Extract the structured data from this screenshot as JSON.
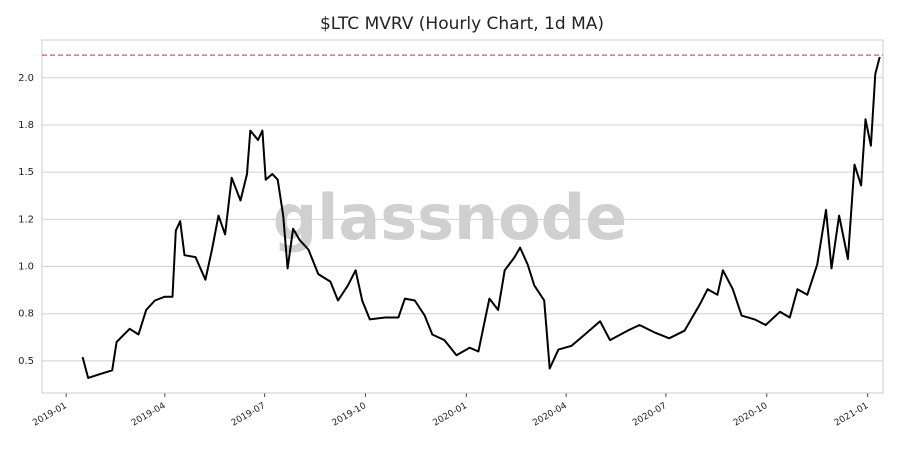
{
  "chart_data": {
    "type": "line",
    "title": "$LTC MVRV (Hourly Chart, 1d MA)",
    "watermark": "glassnode",
    "x": [
      "2019-01-16",
      "2019-01-21",
      "2019-02-01",
      "2019-02-12",
      "2019-02-16",
      "2019-02-28",
      "2019-03-08",
      "2019-03-15",
      "2019-03-23",
      "2019-04-01",
      "2019-04-08",
      "2019-04-11",
      "2019-04-15",
      "2019-04-19",
      "2019-04-29",
      "2019-05-08",
      "2019-05-14",
      "2019-05-20",
      "2019-05-26",
      "2019-06-01",
      "2019-06-09",
      "2019-06-15",
      "2019-06-18",
      "2019-06-25",
      "2019-06-29",
      "2019-07-02",
      "2019-07-08",
      "2019-07-13",
      "2019-07-18",
      "2019-07-22",
      "2019-07-27",
      "2019-08-02",
      "2019-08-10",
      "2019-08-19",
      "2019-08-30",
      "2019-09-06",
      "2019-09-15",
      "2019-09-22",
      "2019-09-28",
      "2019-10-05",
      "2019-10-19",
      "2019-10-31",
      "2019-11-06",
      "2019-11-15",
      "2019-11-24",
      "2019-12-01",
      "2019-12-12",
      "2019-12-23",
      "2020-01-04",
      "2020-01-12",
      "2020-01-17",
      "2020-01-22",
      "2020-01-30",
      "2020-02-05",
      "2020-02-14",
      "2020-02-19",
      "2020-02-26",
      "2020-03-03",
      "2020-03-12",
      "2020-03-17",
      "2020-03-25",
      "2020-04-06",
      "2020-04-18",
      "2020-05-02",
      "2020-05-11",
      "2020-05-27",
      "2020-06-07",
      "2020-06-21",
      "2020-07-04",
      "2020-07-18",
      "2020-08-01",
      "2020-08-08",
      "2020-08-17",
      "2020-08-22",
      "2020-08-31",
      "2020-09-08",
      "2020-09-20",
      "2020-09-30",
      "2020-10-13",
      "2020-10-22",
      "2020-10-29",
      "2020-11-07",
      "2020-11-16",
      "2020-11-24",
      "2020-11-29",
      "2020-12-06",
      "2020-12-14",
      "2020-12-20",
      "2020-12-26",
      "2020-12-30",
      "2021-01-04",
      "2021-01-08",
      "2021-01-12"
    ],
    "series": [
      {
        "name": "MVRV",
        "color": "#000000",
        "values": [
          0.52,
          0.41,
          0.43,
          0.45,
          0.6,
          0.67,
          0.64,
          0.77,
          0.82,
          0.84,
          0.84,
          1.19,
          1.24,
          1.06,
          1.05,
          0.93,
          1.09,
          1.27,
          1.17,
          1.47,
          1.35,
          1.49,
          1.72,
          1.67,
          1.72,
          1.46,
          1.49,
          1.46,
          1.27,
          0.99,
          1.2,
          1.14,
          1.09,
          0.96,
          0.92,
          0.82,
          0.9,
          0.98,
          0.82,
          0.72,
          0.73,
          0.73,
          0.83,
          0.82,
          0.74,
          0.64,
          0.61,
          0.53,
          0.57,
          0.55,
          0.69,
          0.83,
          0.77,
          0.98,
          1.05,
          1.1,
          1.01,
          0.9,
          0.82,
          0.46,
          0.56,
          0.58,
          0.64,
          0.71,
          0.61,
          0.66,
          0.69,
          0.65,
          0.62,
          0.66,
          0.8,
          0.88,
          0.85,
          0.98,
          0.88,
          0.74,
          0.72,
          0.69,
          0.76,
          0.73,
          0.88,
          0.85,
          1.01,
          1.3,
          0.99,
          1.27,
          1.04,
          1.54,
          1.43,
          1.78,
          1.64,
          2.02,
          2.11
        ]
      }
    ],
    "reference_line": {
      "value": 2.12,
      "color": "#e0505f"
    },
    "xlim": [
      "2018-12-10",
      "2021-01-15"
    ],
    "xticks": [
      {
        "value": "2019-01-01",
        "label": "2019-01"
      },
      {
        "value": "2019-04-01",
        "label": "2019-04"
      },
      {
        "value": "2019-07-01",
        "label": "2019-07"
      },
      {
        "value": "2019-10-01",
        "label": "2019-10"
      },
      {
        "value": "2020-01-01",
        "label": "2020-01"
      },
      {
        "value": "2020-04-01",
        "label": "2020-04"
      },
      {
        "value": "2020-07-01",
        "label": "2020-07"
      },
      {
        "value": "2020-10-01",
        "label": "2020-10"
      },
      {
        "value": "2021-01-01",
        "label": "2021-01"
      }
    ],
    "ylim": [
      0.33,
      2.2
    ],
    "yticks": [
      0.5,
      {
        "value": 0.75,
        "label": "0.8"
      },
      {
        "value": 1.0,
        "label": "1.0"
      },
      {
        "value": 1.25,
        "label": "1.2"
      },
      1.5,
      {
        "value": 1.75,
        "label": "1.8"
      },
      {
        "value": 2.0,
        "label": "2.0"
      }
    ],
    "grid": true
  }
}
